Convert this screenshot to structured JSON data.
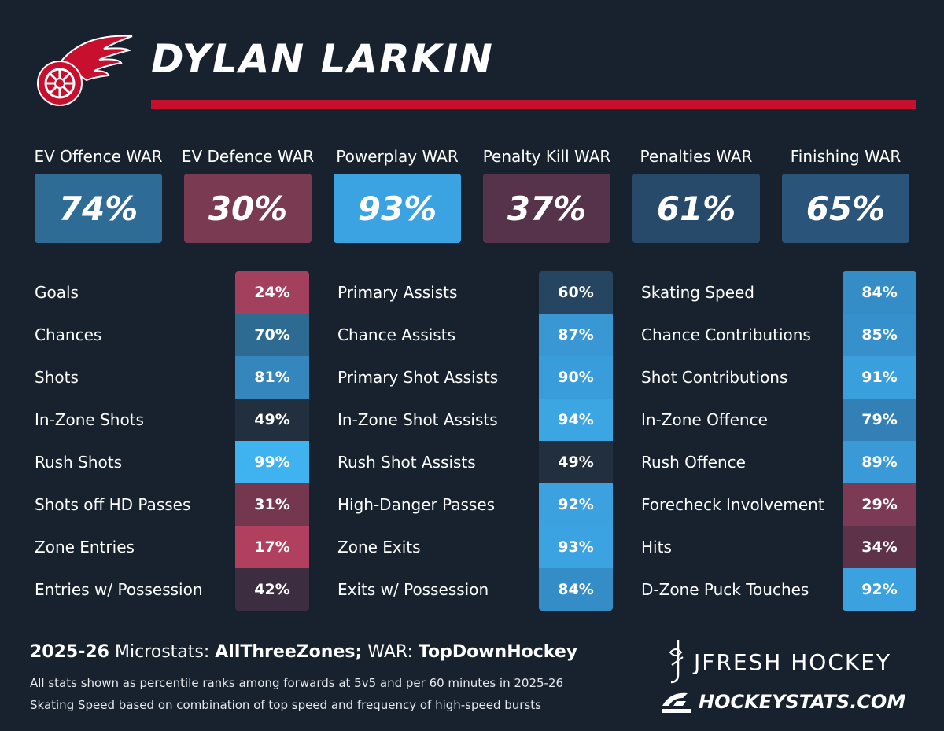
{
  "player": {
    "name": "DYLAN LARKIN",
    "team_color": "#c8102e"
  },
  "war": [
    {
      "label": "EV Offence WAR",
      "value": "74%",
      "color": "#2e6c96"
    },
    {
      "label": "EV Defence WAR",
      "value": "30%",
      "color": "#7a3a52"
    },
    {
      "label": "Powerplay WAR",
      "value": "93%",
      "color": "#3ba3e2"
    },
    {
      "label": "Penalty Kill WAR",
      "value": "37%",
      "color": "#56334a"
    },
    {
      "label": "Penalties WAR",
      "value": "61%",
      "color": "#27496a"
    },
    {
      "label": "Finishing WAR",
      "value": "65%",
      "color": "#2a5479"
    }
  ],
  "stats": [
    [
      {
        "label": "Goals",
        "value": "24%",
        "color": "#a3405d"
      },
      {
        "label": "Chances",
        "value": "70%",
        "color": "#2d6b93"
      },
      {
        "label": "Shots",
        "value": "81%",
        "color": "#3486bd"
      },
      {
        "label": "In-Zone Shots",
        "value": "49%",
        "color": "#222f3f"
      },
      {
        "label": "Rush Shots",
        "value": "99%",
        "color": "#3fb2f0"
      },
      {
        "label": "Shots off HD Passes",
        "value": "31%",
        "color": "#74374f"
      },
      {
        "label": "Zone Entries",
        "value": "17%",
        "color": "#b1405e"
      },
      {
        "label": "Entries w/ Possession",
        "value": "42%",
        "color": "#3c2d40"
      }
    ],
    [
      {
        "label": "Primary Assists",
        "value": "60%",
        "color": "#264561"
      },
      {
        "label": "Chance Assists",
        "value": "87%",
        "color": "#3997d4"
      },
      {
        "label": "Primary Shot Assists",
        "value": "90%",
        "color": "#3a9ddb"
      },
      {
        "label": "In-Zone Shot Assists",
        "value": "94%",
        "color": "#3ca6e3"
      },
      {
        "label": "Rush Shot Assists",
        "value": "49%",
        "color": "#222f3f"
      },
      {
        "label": "High-Danger Passes",
        "value": "92%",
        "color": "#3ba1df"
      },
      {
        "label": "Zone Exits",
        "value": "93%",
        "color": "#3ba3e2"
      },
      {
        "label": "Exits w/ Possession",
        "value": "84%",
        "color": "#358dc7"
      }
    ],
    [
      {
        "label": "Skating Speed",
        "value": "84%",
        "color": "#358dc7"
      },
      {
        "label": "Chance Contributions",
        "value": "85%",
        "color": "#3690cb"
      },
      {
        "label": "Shot Contributions",
        "value": "91%",
        "color": "#3a9fdd"
      },
      {
        "label": "In-Zone Offence",
        "value": "79%",
        "color": "#3280b5"
      },
      {
        "label": "Rush Offence",
        "value": "89%",
        "color": "#399ad7"
      },
      {
        "label": "Forecheck Involvement",
        "value": "29%",
        "color": "#7c3a54"
      },
      {
        "label": "Hits",
        "value": "34%",
        "color": "#5e3349"
      },
      {
        "label": "D-Zone Puck Touches",
        "value": "92%",
        "color": "#3ba1df"
      }
    ]
  ],
  "footer": {
    "season": "2025-26",
    "microstats_label": "Microstats:",
    "microstats_source": "AllThreeZones;",
    "war_label": "WAR:",
    "war_source": "TopDownHockey",
    "note1": "All stats shown as percentile ranks among forwards at 5v5 and per 60 minutes in 2025-26",
    "note2": "Skating Speed based on combination of top speed and frequency of high-speed bursts",
    "brand1": "JFRESH HOCKEY",
    "brand2": "HOCKEYSTATS.COM"
  },
  "icons": {
    "team_logo": "winged-wheel-icon",
    "brand1_logo": "jfresh-logo-icon",
    "brand2_logo": "hockeystats-logo-icon"
  }
}
